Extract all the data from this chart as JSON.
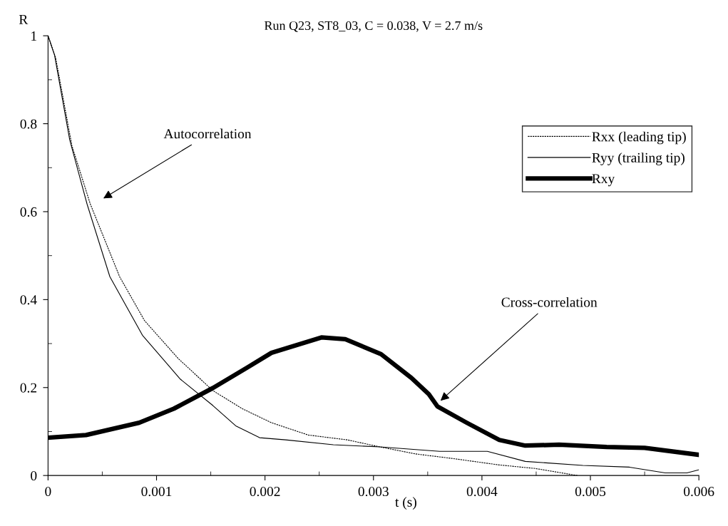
{
  "chart_data": {
    "type": "line",
    "title": "Run Q23, ST8_03, C = 0.038, V = 2.7 m/s",
    "xlabel": "t (s)",
    "ylabel": "R",
    "xlim": [
      0,
      0.006
    ],
    "xticks": [
      0,
      0.001,
      0.002,
      0.003,
      0.004,
      0.005,
      0.006
    ],
    "ylim": [
      0,
      1
    ],
    "yticks": [
      0,
      0.2,
      0.4,
      0.6,
      0.8,
      1
    ],
    "grid": false,
    "legend": "right",
    "marker": "none",
    "annotations": [
      "Autocorrelation",
      "Cross-correlation"
    ],
    "series": [
      {
        "name": "Rxx (leading tip)",
        "color": "#000000",
        "line_style": "dashed",
        "x": [
          0,
          7e-05,
          0.00022,
          0.00039,
          0.00066,
          0.00089,
          0.0012,
          0.00152,
          0.00179,
          0.00206,
          0.0024,
          0.00276,
          0.00306,
          0.00339,
          0.00372,
          0.00416,
          0.00449,
          0.00488
        ],
        "values": [
          1,
          0.95,
          0.75,
          0.617,
          0.452,
          0.352,
          0.266,
          0.193,
          0.152,
          0.12,
          0.092,
          0.081,
          0.065,
          0.049,
          0.039,
          0.024,
          0.016,
          0
        ]
      },
      {
        "name": "Ryy (trailing tip)",
        "color": "#000000",
        "line_style": "solid",
        "x": [
          0,
          6e-05,
          0.0002,
          0.00036,
          0.00057,
          0.00087,
          0.00122,
          0.00152,
          0.00173,
          0.00195,
          0.00219,
          0.00263,
          0.00306,
          0.00361,
          0.00398,
          0.00405,
          0.0044,
          0.00493,
          0.00536,
          0.00569,
          0.00589,
          0.006
        ],
        "values": [
          1,
          0.956,
          0.763,
          0.617,
          0.452,
          0.319,
          0.219,
          0.159,
          0.113,
          0.086,
          0.081,
          0.07,
          0.065,
          0.055,
          0.055,
          0.055,
          0.032,
          0.023,
          0.019,
          0.006,
          0.006,
          0.013
        ]
      },
      {
        "name": "Rxy",
        "color": "#000000",
        "line_style": "solid",
        "x": [
          0,
          0.00035,
          0.00084,
          0.00116,
          0.00152,
          0.00184,
          0.00206,
          0.00252,
          0.00274,
          0.00307,
          0.00335,
          0.00351,
          0.00359,
          0.00386,
          0.00416,
          0.0044,
          0.00471,
          0.00515,
          0.0055,
          0.006
        ],
        "values": [
          0.086,
          0.092,
          0.12,
          0.152,
          0.199,
          0.246,
          0.279,
          0.314,
          0.31,
          0.276,
          0.222,
          0.185,
          0.157,
          0.12,
          0.081,
          0.068,
          0.07,
          0.065,
          0.063,
          0.047
        ]
      }
    ]
  }
}
